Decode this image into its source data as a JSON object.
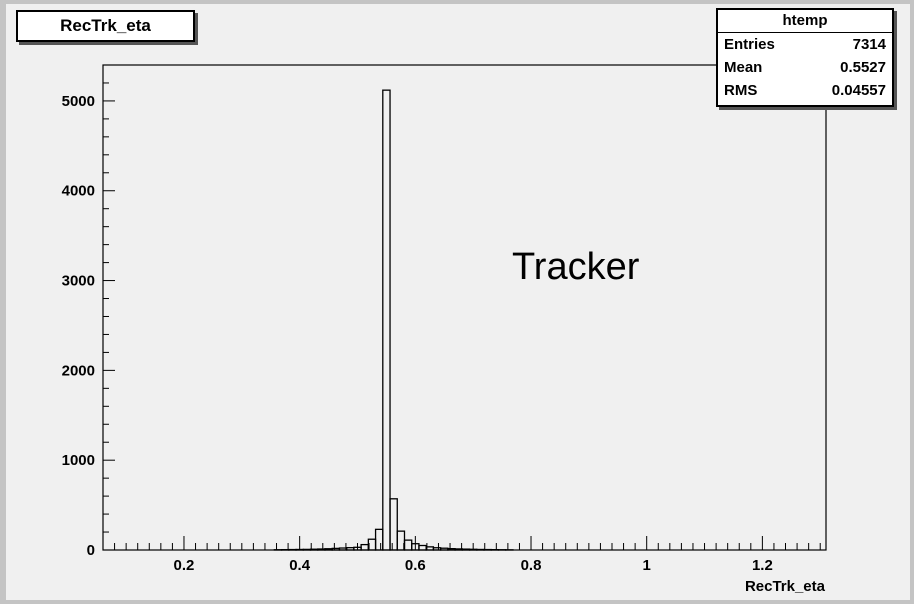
{
  "chart_data": {
    "type": "bar",
    "title": "RecTrk_eta",
    "xlabel": "RecTrk_eta",
    "ylabel": "",
    "xlim": [
      0.06,
      1.31
    ],
    "ylim": [
      0,
      5400
    ],
    "x_ticks": [
      0.2,
      0.4,
      0.6,
      0.8,
      1,
      1.2
    ],
    "x_tick_labels": [
      "0.2",
      "0.4",
      "0.6",
      "0.8",
      "1",
      "1.2"
    ],
    "y_ticks": [
      0,
      1000,
      2000,
      3000,
      4000,
      5000
    ],
    "y_tick_labels": [
      "0",
      "1000",
      "2000",
      "3000",
      "4000",
      "5000"
    ],
    "histogram": "step",
    "bin_width": 0.0125,
    "bins": [
      {
        "x": 0.3625,
        "y": 3
      },
      {
        "x": 0.375,
        "y": 4
      },
      {
        "x": 0.3875,
        "y": 5
      },
      {
        "x": 0.4,
        "y": 6
      },
      {
        "x": 0.4125,
        "y": 7
      },
      {
        "x": 0.425,
        "y": 9
      },
      {
        "x": 0.4375,
        "y": 11
      },
      {
        "x": 0.45,
        "y": 14
      },
      {
        "x": 0.4625,
        "y": 18
      },
      {
        "x": 0.475,
        "y": 22
      },
      {
        "x": 0.4875,
        "y": 26
      },
      {
        "x": 0.5,
        "y": 30
      },
      {
        "x": 0.5125,
        "y": 60
      },
      {
        "x": 0.525,
        "y": 120
      },
      {
        "x": 0.5375,
        "y": 230
      },
      {
        "x": 0.55,
        "y": 5120
      },
      {
        "x": 0.5625,
        "y": 570
      },
      {
        "x": 0.575,
        "y": 210
      },
      {
        "x": 0.5875,
        "y": 110
      },
      {
        "x": 0.6,
        "y": 70
      },
      {
        "x": 0.6125,
        "y": 50
      },
      {
        "x": 0.625,
        "y": 35
      },
      {
        "x": 0.6375,
        "y": 25
      },
      {
        "x": 0.65,
        "y": 20
      },
      {
        "x": 0.6625,
        "y": 15
      },
      {
        "x": 0.675,
        "y": 12
      },
      {
        "x": 0.6875,
        "y": 10
      },
      {
        "x": 0.7,
        "y": 8
      },
      {
        "x": 0.7125,
        "y": 6
      },
      {
        "x": 0.725,
        "y": 5
      },
      {
        "x": 0.7375,
        "y": 4
      },
      {
        "x": 0.75,
        "y": 3
      },
      {
        "x": 0.7625,
        "y": 2
      }
    ],
    "stats": {
      "name": "htemp",
      "rows": [
        {
          "label": "Entries",
          "value": "7314"
        },
        {
          "label": "Mean",
          "value": "0.5527"
        },
        {
          "label": "RMS",
          "value": "0.04557"
        }
      ]
    },
    "annotation": "Tracker",
    "grid": false,
    "line_color": "#000000",
    "background_color": "#f0f0f0"
  }
}
